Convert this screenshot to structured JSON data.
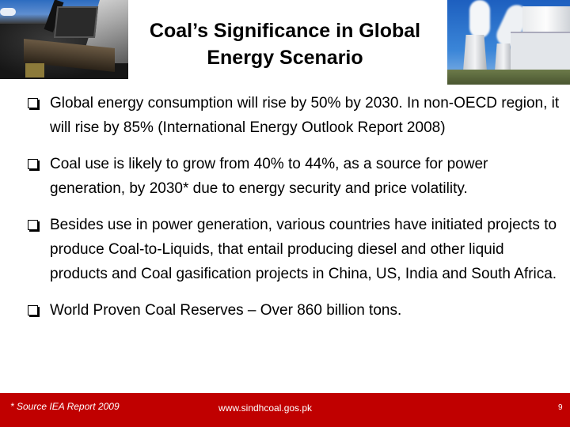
{
  "slide": {
    "title_line1": "Coal’s Significance in Global",
    "title_line2": "Energy Scenario",
    "images": {
      "left": "coal-mining-excavator-photo",
      "right": "coal-power-plant-cooling-towers-photo"
    },
    "bullet_icon": "hollow-square-bullet-icon",
    "bullets": [
      {
        "text": "Global energy consumption will rise by 50% by 2030. In non-OECD region, it will rise by 85% (International Energy Outlook Report 2008)"
      },
      {
        "text": "Coal use is likely to grow from 40% to 44%, as a source for power generation, by 2030*  due to energy security and price volatility."
      },
      {
        "text": "Besides use in power generation, various countries have initiated projects to produce Coal-to-Liquids, that entail producing diesel and other liquid products and Coal gasification projects in China, US, India and South Africa."
      },
      {
        "text": "World Proven Coal Reserves – Over 860 billion tons."
      }
    ]
  },
  "footer": {
    "source_note": "* Source IEA Report 2009",
    "website": "www.sindhcoal.gos.pk",
    "page_number": "9",
    "background_color": "#c00000"
  }
}
